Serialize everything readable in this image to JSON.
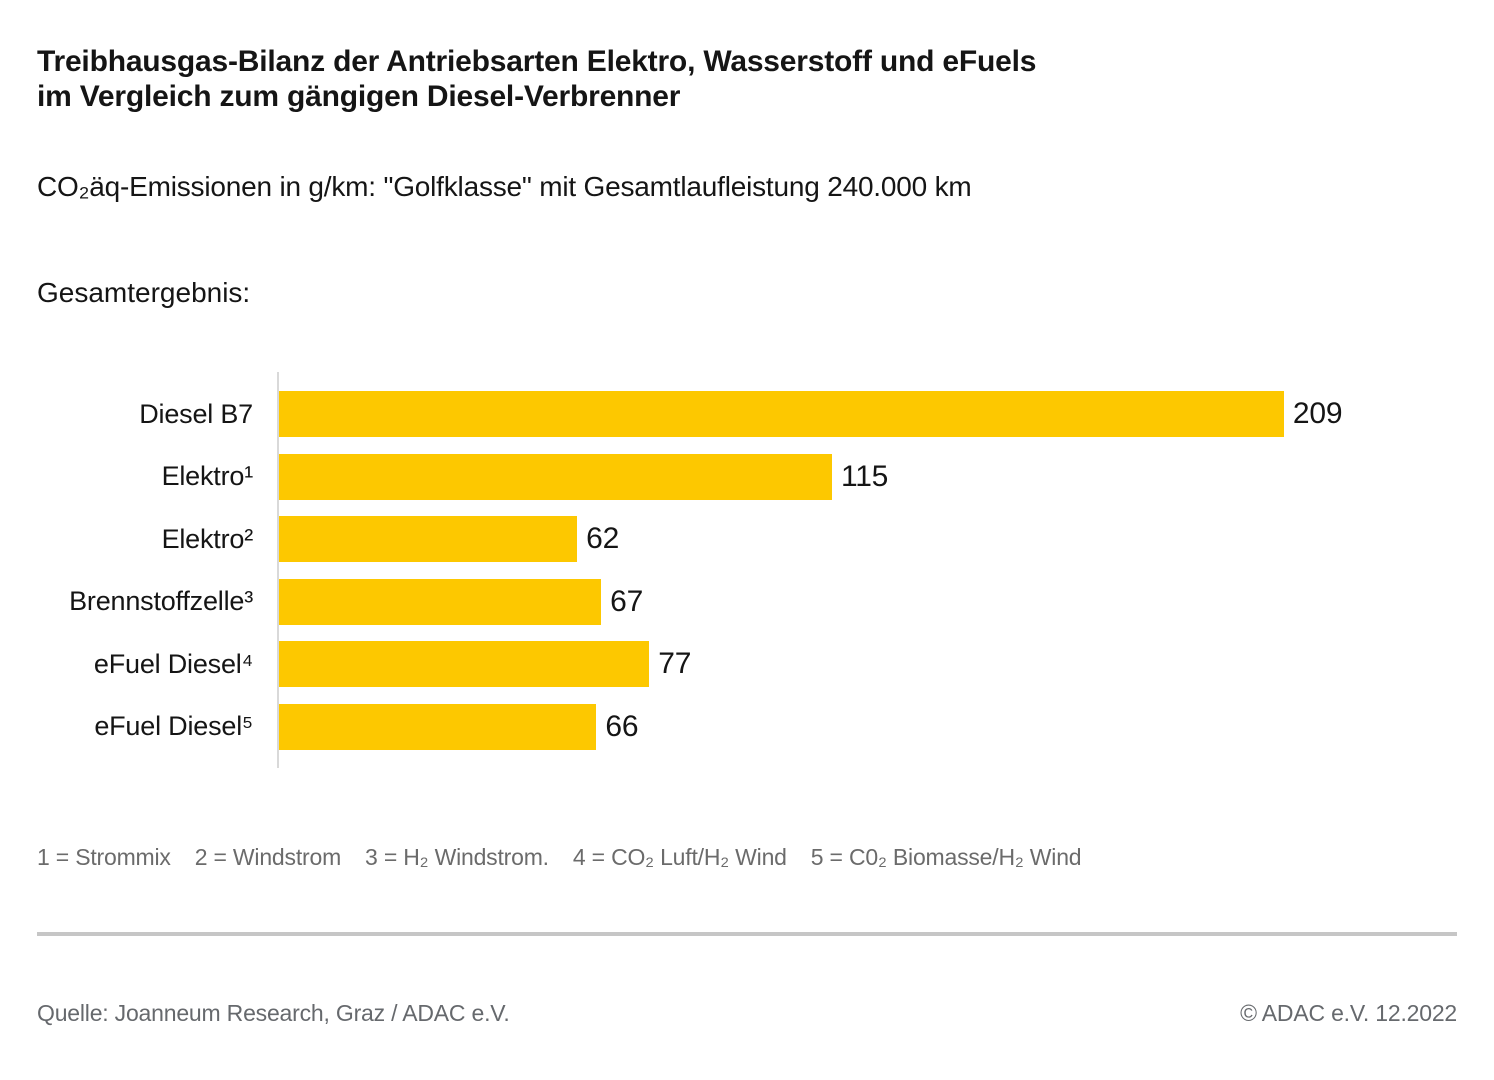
{
  "header": {
    "title_line1": "Treibhausgas-Bilanz der Antriebsarten Elektro, Wasserstoff und eFuels",
    "title_line2": "im Vergleich zum gängigen Diesel-Verbrenner",
    "subtitle": "CO₂äq-Emissionen in g/km: \"Golfklasse\" mit Gesamtlaufleistung 240.000 km",
    "section_label": "Gesamtergebnis:"
  },
  "chart_data": {
    "type": "bar",
    "orientation": "horizontal",
    "title": "Gesamtergebnis:",
    "unit": "g/km",
    "categories": [
      "Diesel B7",
      "Elektro¹",
      "Elektro²",
      "Brennstoffzelle³",
      "eFuel Diesel⁴",
      "eFuel Diesel⁵"
    ],
    "values": [
      209,
      115,
      62,
      67,
      77,
      66
    ],
    "xlim": [
      0,
      245
    ],
    "grid": false,
    "legend": "none",
    "value_labels": true,
    "bar_color": "#FDC800"
  },
  "footnotes": [
    "1 = Strommix",
    "2 = Windstrom",
    "3 = H₂ Windstrom.",
    "4 = CO₂ Luft/H₂ Wind",
    "5 = C0₂ Biomasse/H₂ Wind"
  ],
  "footer": {
    "source": "Quelle: Joanneum Research, Graz / ADAC e.V.",
    "copyright": "© ADAC e.V. 12.2022"
  },
  "colors": {
    "bar_yellow": "#FDC800",
    "axis_gray": "#D9D9D9",
    "divider_gray": "#C6C6C6",
    "text_dark": "#151515",
    "text_gray": "#6B6B6B"
  }
}
